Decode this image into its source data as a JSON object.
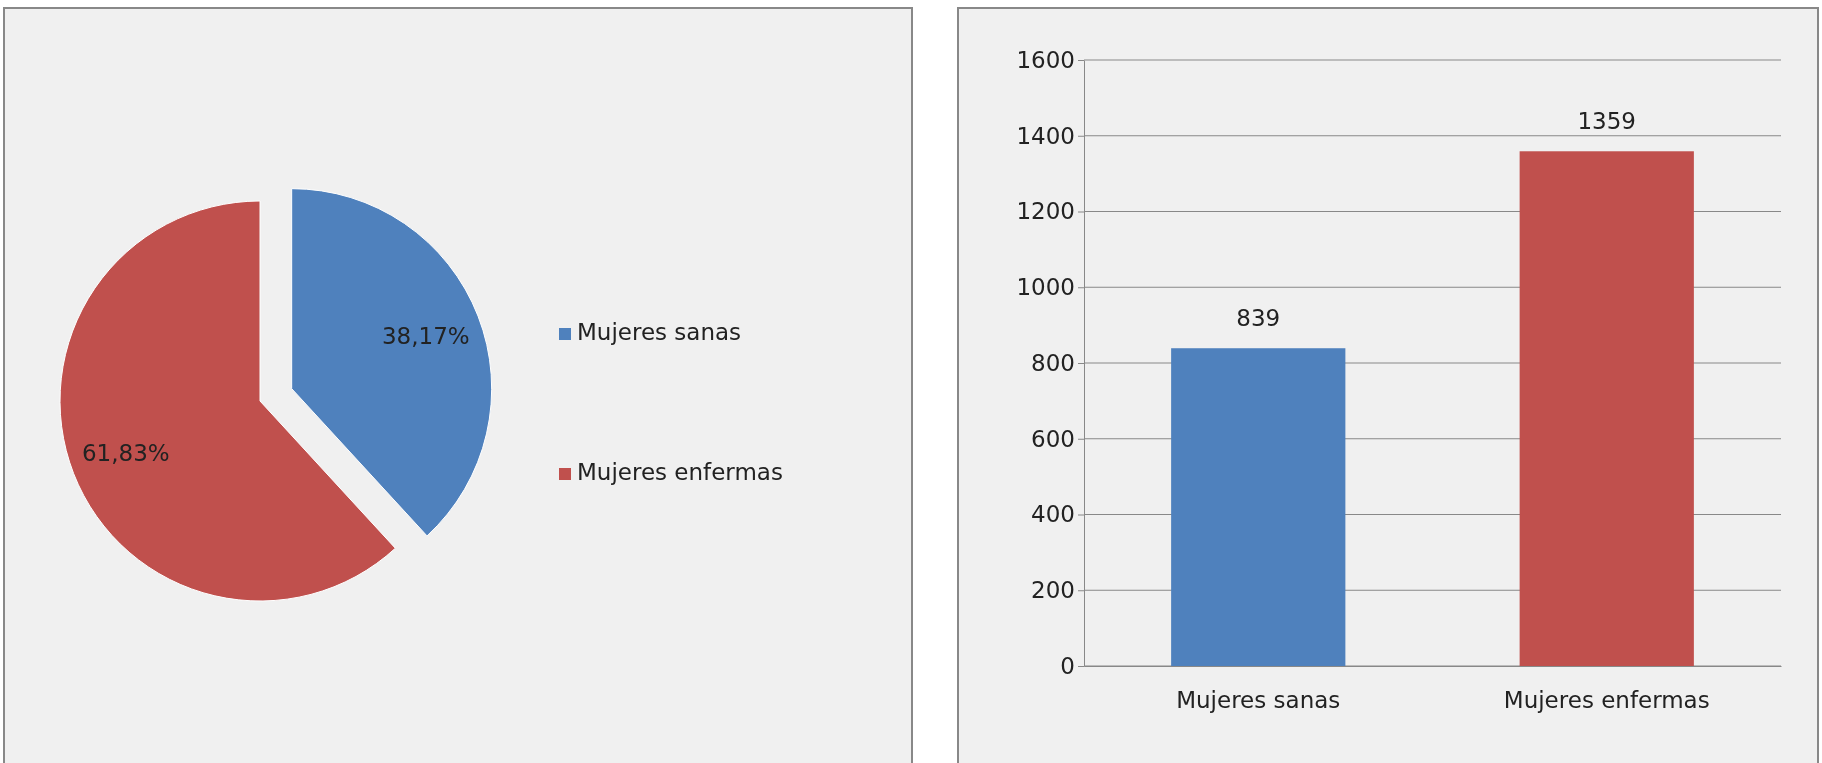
{
  "chart_data": [
    {
      "type": "pie",
      "categories": [
        "Mujeres sanas",
        "Mujeres enfermas"
      ],
      "values": [
        38.17,
        61.83
      ],
      "colors": [
        "#4f81bd",
        "#c0504d"
      ],
      "value_labels": [
        "38,17%",
        "61,83%"
      ],
      "legend": "right"
    },
    {
      "type": "bar",
      "categories": [
        "Mujeres sanas",
        "Mujeres enfermas"
      ],
      "values": [
        839,
        1359
      ],
      "colors": [
        "#4f81bd",
        "#c0504d"
      ],
      "ylim": [
        0,
        1600
      ],
      "yticks": [
        0,
        200,
        400,
        600,
        800,
        1000,
        1200,
        1400,
        1600
      ],
      "grid": "y",
      "data_labels": true
    }
  ]
}
